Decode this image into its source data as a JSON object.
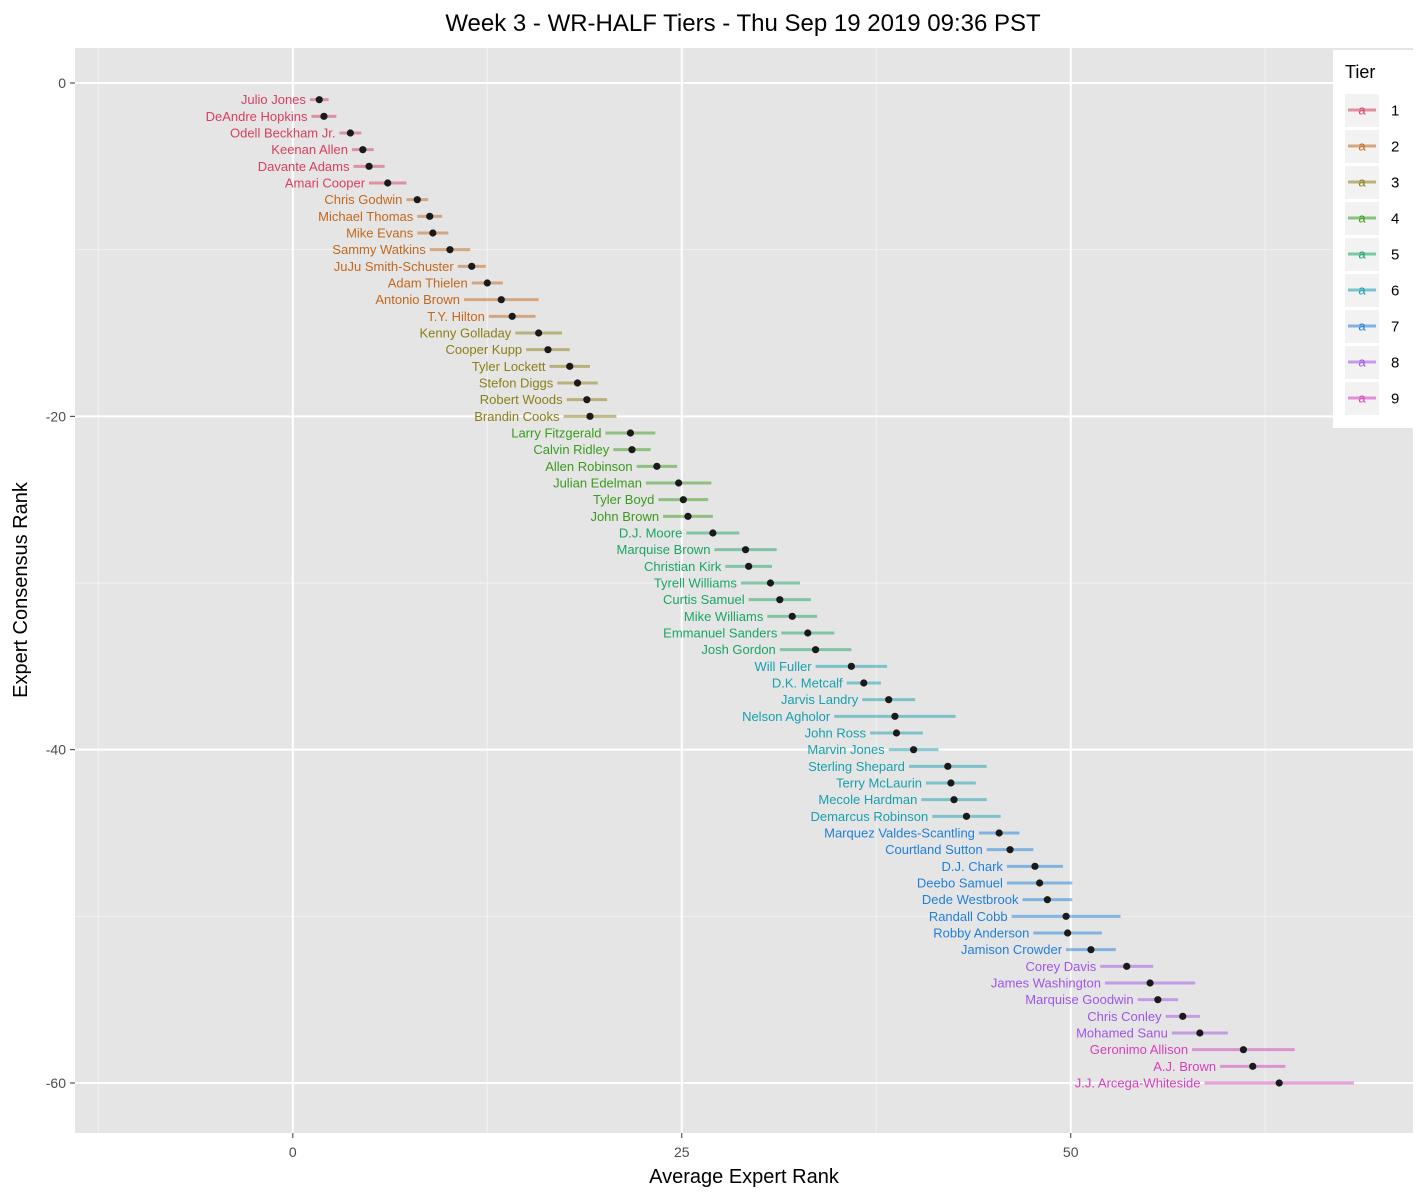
{
  "chart_data": {
    "type": "scatter",
    "title": "Week 3 - WR-HALF Tiers - Thu Sep 19 2019 09:36 PST",
    "xlabel": "Average Expert Rank",
    "ylabel": "Expert Consensus Rank",
    "xlim": [
      -14,
      72
    ],
    "ylim": [
      -63,
      2.1
    ],
    "x_ticks": [
      0,
      25,
      50
    ],
    "y_ticks": [
      0,
      -20,
      -40,
      -60
    ],
    "grid": true,
    "legend": {
      "title": "Tier",
      "placement": "right",
      "glyph": "a",
      "entries": [
        "1",
        "2",
        "3",
        "4",
        "5",
        "6",
        "7",
        "8",
        "9"
      ]
    },
    "tier_colors": {
      "1": "#d6405f",
      "2": "#c2671d",
      "3": "#8a7f16",
      "4": "#3a9b1d",
      "5": "#1aa565",
      "6": "#17a0ad",
      "7": "#1f7fd8",
      "8": "#a154e8",
      "9": "#d63fbe"
    },
    "points": [
      {
        "name": "Julio Jones",
        "tier": 1,
        "rank": -1,
        "avg": 1.7,
        "lo": 1.1,
        "hi": 2.3
      },
      {
        "name": "DeAndre Hopkins",
        "tier": 1,
        "rank": -2,
        "avg": 2.0,
        "lo": 1.2,
        "hi": 2.8
      },
      {
        "name": "Odell Beckham Jr.",
        "tier": 1,
        "rank": -3,
        "avg": 3.7,
        "lo": 3.0,
        "hi": 4.4
      },
      {
        "name": "Keenan Allen",
        "tier": 1,
        "rank": -4,
        "avg": 4.5,
        "lo": 3.8,
        "hi": 5.2
      },
      {
        "name": "Davante Adams",
        "tier": 1,
        "rank": -5,
        "avg": 4.9,
        "lo": 3.9,
        "hi": 5.9
      },
      {
        "name": "Amari Cooper",
        "tier": 1,
        "rank": -6,
        "avg": 6.1,
        "lo": 4.9,
        "hi": 7.3
      },
      {
        "name": "Chris Godwin",
        "tier": 2,
        "rank": -7,
        "avg": 8.0,
        "lo": 7.3,
        "hi": 8.7
      },
      {
        "name": "Michael Thomas",
        "tier": 2,
        "rank": -8,
        "avg": 8.8,
        "lo": 8.0,
        "hi": 9.6
      },
      {
        "name": "Mike Evans",
        "tier": 2,
        "rank": -9,
        "avg": 9.0,
        "lo": 8.0,
        "hi": 10.0
      },
      {
        "name": "Sammy Watkins",
        "tier": 2,
        "rank": -10,
        "avg": 10.1,
        "lo": 8.8,
        "hi": 11.4
      },
      {
        "name": "JuJu Smith-Schuster",
        "tier": 2,
        "rank": -11,
        "avg": 11.5,
        "lo": 10.6,
        "hi": 12.4
      },
      {
        "name": "Adam Thielen",
        "tier": 2,
        "rank": -12,
        "avg": 12.5,
        "lo": 11.5,
        "hi": 13.5
      },
      {
        "name": "Antonio Brown",
        "tier": 2,
        "rank": -13,
        "avg": 13.4,
        "lo": 11.0,
        "hi": 15.8
      },
      {
        "name": "T.Y. Hilton",
        "tier": 2,
        "rank": -14,
        "avg": 14.1,
        "lo": 12.6,
        "hi": 15.6
      },
      {
        "name": "Kenny Golladay",
        "tier": 3,
        "rank": -15,
        "avg": 15.8,
        "lo": 14.3,
        "hi": 17.3
      },
      {
        "name": "Cooper Kupp",
        "tier": 3,
        "rank": -16,
        "avg": 16.4,
        "lo": 15.0,
        "hi": 17.8
      },
      {
        "name": "Tyler Lockett",
        "tier": 3,
        "rank": -17,
        "avg": 17.8,
        "lo": 16.5,
        "hi": 19.1
      },
      {
        "name": "Stefon Diggs",
        "tier": 3,
        "rank": -18,
        "avg": 18.3,
        "lo": 17.0,
        "hi": 19.6
      },
      {
        "name": "Robert Woods",
        "tier": 3,
        "rank": -19,
        "avg": 18.9,
        "lo": 17.6,
        "hi": 20.2
      },
      {
        "name": "Brandin Cooks",
        "tier": 3,
        "rank": -20,
        "avg": 19.1,
        "lo": 17.4,
        "hi": 20.8
      },
      {
        "name": "Larry Fitzgerald",
        "tier": 4,
        "rank": -21,
        "avg": 21.7,
        "lo": 20.1,
        "hi": 23.3
      },
      {
        "name": "Calvin Ridley",
        "tier": 4,
        "rank": -22,
        "avg": 21.8,
        "lo": 20.6,
        "hi": 23.0
      },
      {
        "name": "Allen Robinson",
        "tier": 4,
        "rank": -23,
        "avg": 23.4,
        "lo": 22.1,
        "hi": 24.7
      },
      {
        "name": "Julian Edelman",
        "tier": 4,
        "rank": -24,
        "avg": 24.8,
        "lo": 22.7,
        "hi": 26.9
      },
      {
        "name": "Tyler Boyd",
        "tier": 4,
        "rank": -25,
        "avg": 25.1,
        "lo": 23.5,
        "hi": 26.7
      },
      {
        "name": "John Brown",
        "tier": 4,
        "rank": -26,
        "avg": 25.4,
        "lo": 23.8,
        "hi": 27.0
      },
      {
        "name": "D.J. Moore",
        "tier": 5,
        "rank": -27,
        "avg": 27.0,
        "lo": 25.3,
        "hi": 28.7
      },
      {
        "name": "Marquise Brown",
        "tier": 5,
        "rank": -28,
        "avg": 29.1,
        "lo": 27.1,
        "hi": 31.1
      },
      {
        "name": "Christian Kirk",
        "tier": 5,
        "rank": -29,
        "avg": 29.3,
        "lo": 27.8,
        "hi": 30.8
      },
      {
        "name": "Tyrell Williams",
        "tier": 5,
        "rank": -30,
        "avg": 30.7,
        "lo": 28.8,
        "hi": 32.6
      },
      {
        "name": "Curtis Samuel",
        "tier": 5,
        "rank": -31,
        "avg": 31.3,
        "lo": 29.3,
        "hi": 33.3
      },
      {
        "name": "Mike Williams",
        "tier": 5,
        "rank": -32,
        "avg": 32.1,
        "lo": 30.5,
        "hi": 33.7
      },
      {
        "name": "Emmanuel Sanders",
        "tier": 5,
        "rank": -33,
        "avg": 33.1,
        "lo": 31.4,
        "hi": 34.8
      },
      {
        "name": "Josh Gordon",
        "tier": 5,
        "rank": -34,
        "avg": 33.6,
        "lo": 31.3,
        "hi": 35.9
      },
      {
        "name": "Will Fuller",
        "tier": 6,
        "rank": -35,
        "avg": 35.9,
        "lo": 33.6,
        "hi": 38.2
      },
      {
        "name": "D.K. Metcalf",
        "tier": 6,
        "rank": -36,
        "avg": 36.7,
        "lo": 35.6,
        "hi": 37.8
      },
      {
        "name": "Jarvis Landry",
        "tier": 6,
        "rank": -37,
        "avg": 38.3,
        "lo": 36.6,
        "hi": 40.0
      },
      {
        "name": "Nelson Agholor",
        "tier": 6,
        "rank": -38,
        "avg": 38.7,
        "lo": 34.8,
        "hi": 42.6
      },
      {
        "name": "John Ross",
        "tier": 6,
        "rank": -39,
        "avg": 38.8,
        "lo": 37.1,
        "hi": 40.5
      },
      {
        "name": "Marvin Jones",
        "tier": 6,
        "rank": -40,
        "avg": 39.9,
        "lo": 38.3,
        "hi": 41.5
      },
      {
        "name": "Sterling Shepard",
        "tier": 6,
        "rank": -41,
        "avg": 42.1,
        "lo": 39.6,
        "hi": 44.6
      },
      {
        "name": "Terry McLaurin",
        "tier": 6,
        "rank": -42,
        "avg": 42.3,
        "lo": 40.7,
        "hi": 43.9
      },
      {
        "name": "Mecole Hardman",
        "tier": 6,
        "rank": -43,
        "avg": 42.5,
        "lo": 40.4,
        "hi": 44.6
      },
      {
        "name": "Demarcus Robinson",
        "tier": 6,
        "rank": -44,
        "avg": 43.3,
        "lo": 41.1,
        "hi": 45.5
      },
      {
        "name": "Marquez Valdes-Scantling",
        "tier": 7,
        "rank": -45,
        "avg": 45.4,
        "lo": 44.1,
        "hi": 46.7
      },
      {
        "name": "Courtland Sutton",
        "tier": 7,
        "rank": -46,
        "avg": 46.1,
        "lo": 44.6,
        "hi": 47.6
      },
      {
        "name": "D.J. Chark",
        "tier": 7,
        "rank": -47,
        "avg": 47.7,
        "lo": 45.9,
        "hi": 49.5
      },
      {
        "name": "Deebo Samuel",
        "tier": 7,
        "rank": -48,
        "avg": 48.0,
        "lo": 45.9,
        "hi": 50.1
      },
      {
        "name": "Dede Westbrook",
        "tier": 7,
        "rank": -49,
        "avg": 48.5,
        "lo": 46.9,
        "hi": 50.1
      },
      {
        "name": "Randall Cobb",
        "tier": 7,
        "rank": -50,
        "avg": 49.7,
        "lo": 46.2,
        "hi": 53.2
      },
      {
        "name": "Robby Anderson",
        "tier": 7,
        "rank": -51,
        "avg": 49.8,
        "lo": 47.6,
        "hi": 52.0
      },
      {
        "name": "Jamison Crowder",
        "tier": 7,
        "rank": -52,
        "avg": 51.3,
        "lo": 49.7,
        "hi": 52.9
      },
      {
        "name": "Corey Davis",
        "tier": 8,
        "rank": -53,
        "avg": 53.6,
        "lo": 51.9,
        "hi": 55.3
      },
      {
        "name": "James Washington",
        "tier": 8,
        "rank": -54,
        "avg": 55.1,
        "lo": 52.2,
        "hi": 58.0
      },
      {
        "name": "Marquise Goodwin",
        "tier": 8,
        "rank": -55,
        "avg": 55.6,
        "lo": 54.3,
        "hi": 56.9
      },
      {
        "name": "Chris Conley",
        "tier": 8,
        "rank": -56,
        "avg": 57.2,
        "lo": 56.1,
        "hi": 58.3
      },
      {
        "name": "Mohamed Sanu",
        "tier": 8,
        "rank": -57,
        "avg": 58.3,
        "lo": 56.5,
        "hi": 60.1
      },
      {
        "name": "Geronimo Allison",
        "tier": 9,
        "rank": -58,
        "avg": 61.1,
        "lo": 57.8,
        "hi": 64.4
      },
      {
        "name": "A.J. Brown",
        "tier": 9,
        "rank": -59,
        "avg": 61.7,
        "lo": 59.6,
        "hi": 63.8
      },
      {
        "name": "J.J. Arcega-Whiteside",
        "tier": 9,
        "rank": -60,
        "avg": 63.4,
        "lo": 58.6,
        "hi": 68.2
      }
    ]
  }
}
